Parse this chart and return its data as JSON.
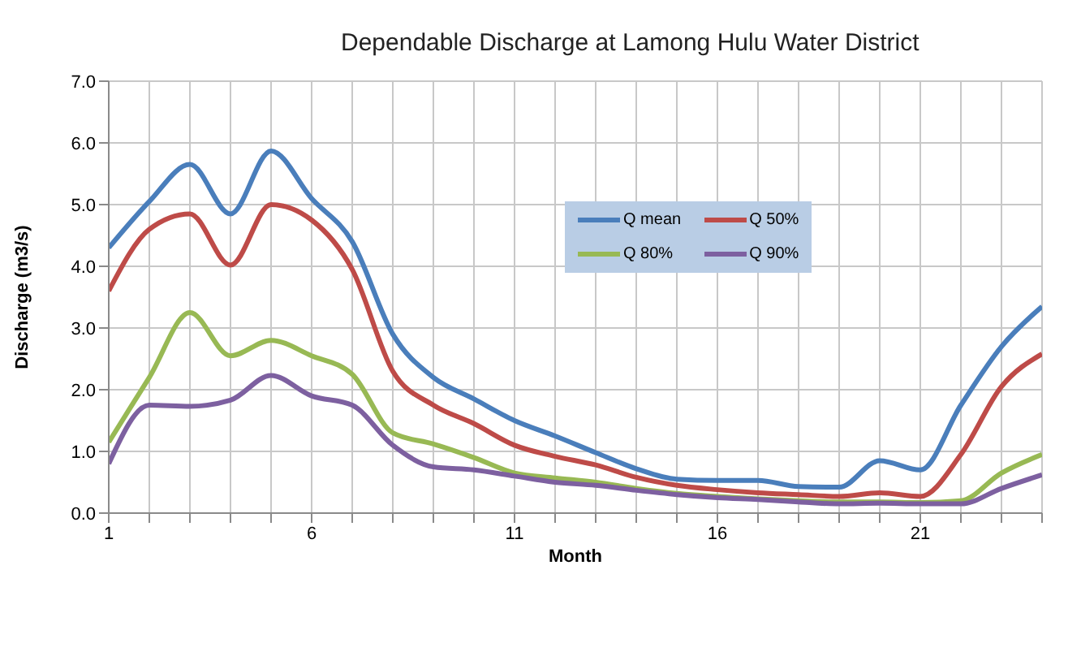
{
  "chart_data": {
    "type": "line",
    "title": "Dependable Discharge at Lamong Hulu Water District",
    "xlabel": "Month",
    "ylabel": "Discharge  (m3/s)",
    "x": [
      1,
      2,
      3,
      4,
      5,
      6,
      7,
      8,
      9,
      10,
      11,
      12,
      13,
      14,
      15,
      16,
      17,
      18,
      19,
      20,
      21,
      22,
      23,
      24
    ],
    "series": [
      {
        "name": "Q mean",
        "color": "#4a7ebb",
        "values": [
          4.3,
          5.05,
          5.65,
          4.85,
          5.87,
          5.1,
          4.4,
          2.9,
          2.2,
          1.85,
          1.5,
          1.25,
          0.98,
          0.72,
          0.55,
          0.53,
          0.53,
          0.43,
          0.42,
          0.85,
          0.7,
          1.75,
          2.7,
          3.35
        ]
      },
      {
        "name": "Q 50%",
        "color": "#be4b48",
        "values": [
          3.6,
          4.6,
          4.85,
          4.02,
          5.0,
          4.75,
          3.95,
          2.3,
          1.75,
          1.45,
          1.1,
          0.92,
          0.78,
          0.58,
          0.45,
          0.38,
          0.33,
          0.3,
          0.27,
          0.33,
          0.27,
          0.95,
          2.05,
          2.58
        ]
      },
      {
        "name": "Q 80%",
        "color": "#98b954",
        "values": [
          1.15,
          2.2,
          3.25,
          2.55,
          2.8,
          2.55,
          2.25,
          1.3,
          1.12,
          0.9,
          0.65,
          0.57,
          0.5,
          0.4,
          0.32,
          0.27,
          0.23,
          0.2,
          0.18,
          0.18,
          0.17,
          0.2,
          0.65,
          0.95
        ]
      },
      {
        "name": "Q 90%",
        "color": "#7d60a0",
        "values": [
          0.8,
          1.75,
          1.73,
          1.83,
          2.23,
          1.9,
          1.75,
          1.1,
          0.75,
          0.7,
          0.6,
          0.5,
          0.45,
          0.37,
          0.3,
          0.25,
          0.22,
          0.18,
          0.15,
          0.16,
          0.15,
          0.15,
          0.4,
          0.62
        ]
      }
    ],
    "xlim": [
      1,
      24
    ],
    "xticks": [
      1,
      {
        "value": 2,
        "label": null
      },
      {
        "value": 3,
        "label": null
      },
      {
        "value": 4,
        "label": null
      },
      {
        "value": 5,
        "label": null
      },
      6,
      {
        "value": 7,
        "label": null
      },
      {
        "value": 8,
        "label": null
      },
      {
        "value": 9,
        "label": null
      },
      {
        "value": 10,
        "label": null
      },
      11,
      {
        "value": 12,
        "label": null
      },
      {
        "value": 13,
        "label": null
      },
      {
        "value": 14,
        "label": null
      },
      {
        "value": 15,
        "label": null
      },
      16,
      {
        "value": 17,
        "label": null
      },
      {
        "value": 18,
        "label": null
      },
      {
        "value": 19,
        "label": null
      },
      {
        "value": 20,
        "label": null
      },
      21,
      {
        "value": 22,
        "label": null
      },
      {
        "value": 23,
        "label": null
      },
      {
        "value": 24,
        "label": null
      }
    ],
    "ylim": [
      0,
      7
    ],
    "yticks": [
      {
        "value": 0,
        "label": "0.0"
      },
      {
        "value": 1,
        "label": "1.0"
      },
      {
        "value": 2,
        "label": "2.0"
      },
      {
        "value": 3,
        "label": "3.0"
      },
      {
        "value": 4,
        "label": "4.0"
      },
      {
        "value": 5,
        "label": "5.0"
      },
      {
        "value": 6,
        "label": "6.0"
      },
      {
        "value": 7,
        "label": "7.0"
      }
    ],
    "grid": true,
    "legend": "top right",
    "marker": "none",
    "line_style": "solid"
  }
}
